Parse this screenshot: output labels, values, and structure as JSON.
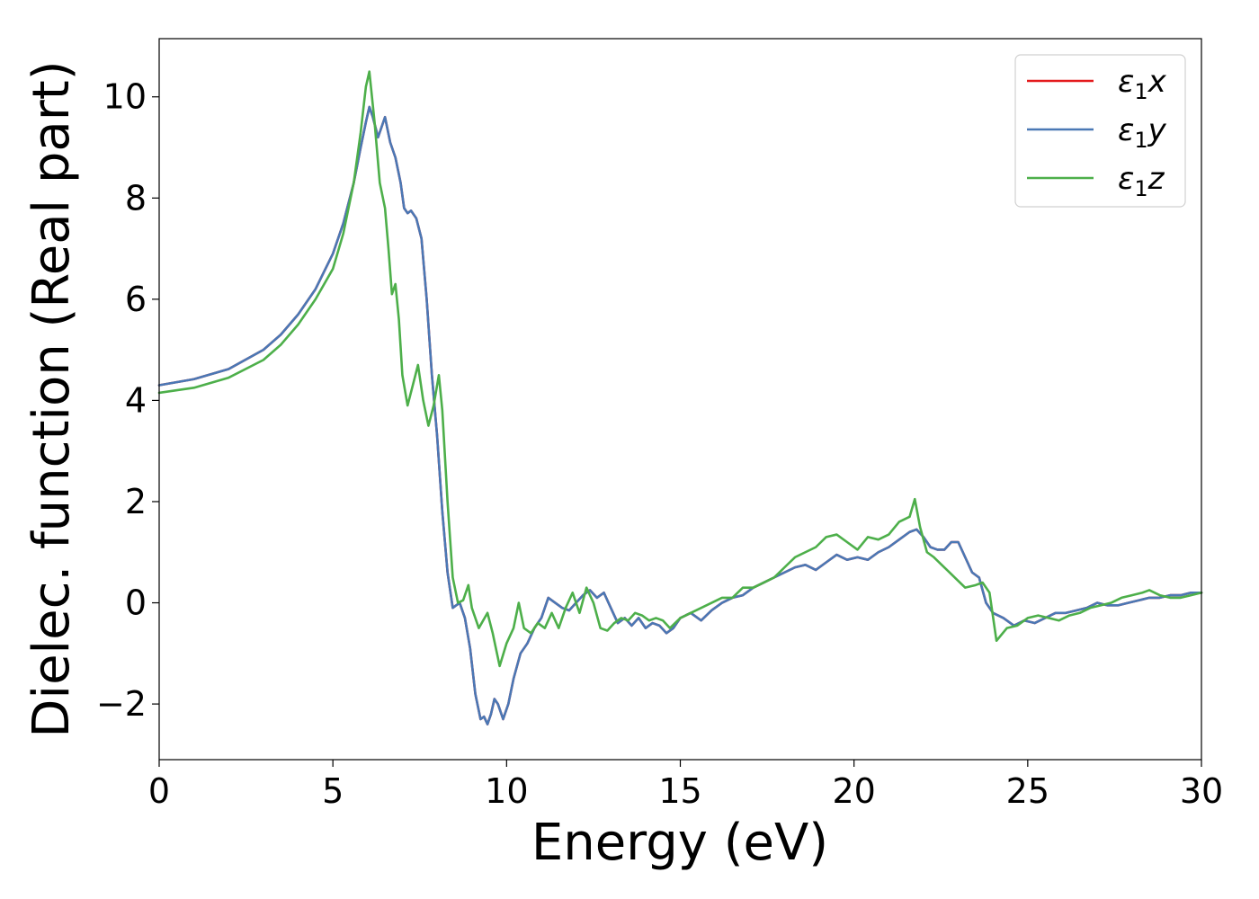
{
  "chart_data": {
    "type": "line",
    "xlabel": "Energy (eV)",
    "ylabel": "Dielec. function (Real part)",
    "xlim": [
      0,
      30
    ],
    "ylim": [
      -3.1,
      11.15
    ],
    "xticks": [
      0,
      5,
      10,
      15,
      20,
      25,
      30
    ],
    "xtick_labels": [
      "0",
      "5",
      "10",
      "15",
      "20",
      "25",
      "30"
    ],
    "yticks": [
      -2,
      0,
      2,
      4,
      6,
      8,
      10
    ],
    "ytick_labels": [
      "−2",
      "0",
      "2",
      "4",
      "6",
      "8",
      "10"
    ],
    "grid": false,
    "legend_position": "top-right",
    "series": [
      {
        "name": "ε1x",
        "legend_base": "ε",
        "legend_sub": "1",
        "legend_var": "x",
        "color": "#e41a1c",
        "x": [
          0,
          1,
          2,
          3,
          3.5,
          4,
          4.5,
          5,
          5.3,
          5.6,
          5.8,
          5.95,
          6.05,
          6.15,
          6.3,
          6.5,
          6.65,
          6.8,
          6.95,
          7.05,
          7.15,
          7.25,
          7.4,
          7.55,
          7.7,
          7.85,
          8.0,
          8.15,
          8.3,
          8.45,
          8.55,
          8.65,
          8.8,
          8.95,
          9.1,
          9.25,
          9.35,
          9.45,
          9.55,
          9.65,
          9.75,
          9.9,
          10.05,
          10.2,
          10.4,
          10.6,
          10.8,
          11.0,
          11.2,
          11.4,
          11.6,
          11.8,
          12.0,
          12.2,
          12.4,
          12.6,
          12.8,
          13.0,
          13.2,
          13.4,
          13.6,
          13.8,
          14.0,
          14.2,
          14.4,
          14.6,
          14.8,
          15.0,
          15.3,
          15.6,
          15.9,
          16.2,
          16.5,
          16.8,
          17.1,
          17.4,
          17.7,
          18.0,
          18.3,
          18.6,
          18.9,
          19.2,
          19.5,
          19.8,
          20.1,
          20.4,
          20.7,
          21.0,
          21.3,
          21.6,
          21.8,
          22.0,
          22.2,
          22.4,
          22.6,
          22.8,
          23.0,
          23.2,
          23.4,
          23.6,
          23.8,
          24.0,
          24.3,
          24.6,
          24.9,
          25.2,
          25.5,
          25.8,
          26.1,
          26.4,
          26.7,
          27.0,
          27.3,
          27.6,
          27.9,
          28.2,
          28.5,
          28.8,
          29.1,
          29.4,
          29.7,
          30.0
        ],
        "y": [
          4.3,
          4.42,
          4.62,
          5.0,
          5.3,
          5.7,
          6.2,
          6.9,
          7.5,
          8.3,
          9.0,
          9.5,
          9.8,
          9.6,
          9.2,
          9.6,
          9.1,
          8.8,
          8.3,
          7.8,
          7.7,
          7.75,
          7.6,
          7.2,
          6.0,
          4.5,
          3.3,
          1.8,
          0.6,
          -0.1,
          -0.05,
          0.0,
          -0.3,
          -0.9,
          -1.8,
          -2.3,
          -2.25,
          -2.4,
          -2.2,
          -1.9,
          -2.0,
          -2.3,
          -2.0,
          -1.5,
          -1.0,
          -0.8,
          -0.5,
          -0.3,
          0.1,
          0.0,
          -0.1,
          -0.15,
          0.0,
          0.15,
          0.25,
          0.1,
          0.2,
          -0.1,
          -0.4,
          -0.3,
          -0.45,
          -0.3,
          -0.5,
          -0.4,
          -0.45,
          -0.6,
          -0.5,
          -0.3,
          -0.2,
          -0.35,
          -0.15,
          0.0,
          0.1,
          0.15,
          0.3,
          0.4,
          0.5,
          0.6,
          0.7,
          0.75,
          0.65,
          0.8,
          0.95,
          0.85,
          0.9,
          0.85,
          1.0,
          1.1,
          1.25,
          1.4,
          1.45,
          1.3,
          1.1,
          1.05,
          1.05,
          1.2,
          1.2,
          0.9,
          0.6,
          0.5,
          0.0,
          -0.2,
          -0.3,
          -0.45,
          -0.35,
          -0.4,
          -0.3,
          -0.2,
          -0.2,
          -0.15,
          -0.1,
          0.0,
          -0.05,
          -0.05,
          0.0,
          0.05,
          0.1,
          0.1,
          0.15,
          0.15,
          0.2,
          0.2
        ]
      },
      {
        "name": "ε1y",
        "legend_base": "ε",
        "legend_sub": "1",
        "legend_var": "y",
        "color": "#4a78b5",
        "x": [
          0,
          1,
          2,
          3,
          3.5,
          4,
          4.5,
          5,
          5.3,
          5.6,
          5.8,
          5.95,
          6.05,
          6.15,
          6.3,
          6.5,
          6.65,
          6.8,
          6.95,
          7.05,
          7.15,
          7.25,
          7.4,
          7.55,
          7.7,
          7.85,
          8.0,
          8.15,
          8.3,
          8.45,
          8.55,
          8.65,
          8.8,
          8.95,
          9.1,
          9.25,
          9.35,
          9.45,
          9.55,
          9.65,
          9.75,
          9.9,
          10.05,
          10.2,
          10.4,
          10.6,
          10.8,
          11.0,
          11.2,
          11.4,
          11.6,
          11.8,
          12.0,
          12.2,
          12.4,
          12.6,
          12.8,
          13.0,
          13.2,
          13.4,
          13.6,
          13.8,
          14.0,
          14.2,
          14.4,
          14.6,
          14.8,
          15.0,
          15.3,
          15.6,
          15.9,
          16.2,
          16.5,
          16.8,
          17.1,
          17.4,
          17.7,
          18.0,
          18.3,
          18.6,
          18.9,
          19.2,
          19.5,
          19.8,
          20.1,
          20.4,
          20.7,
          21.0,
          21.3,
          21.6,
          21.8,
          22.0,
          22.2,
          22.4,
          22.6,
          22.8,
          23.0,
          23.2,
          23.4,
          23.6,
          23.8,
          24.0,
          24.3,
          24.6,
          24.9,
          25.2,
          25.5,
          25.8,
          26.1,
          26.4,
          26.7,
          27.0,
          27.3,
          27.6,
          27.9,
          28.2,
          28.5,
          28.8,
          29.1,
          29.4,
          29.7,
          30.0
        ],
        "y": [
          4.3,
          4.42,
          4.62,
          5.0,
          5.3,
          5.7,
          6.2,
          6.9,
          7.5,
          8.3,
          9.0,
          9.5,
          9.8,
          9.6,
          9.2,
          9.6,
          9.1,
          8.8,
          8.3,
          7.8,
          7.7,
          7.75,
          7.6,
          7.2,
          6.0,
          4.5,
          3.3,
          1.8,
          0.6,
          -0.1,
          -0.05,
          0.0,
          -0.3,
          -0.9,
          -1.8,
          -2.3,
          -2.25,
          -2.4,
          -2.2,
          -1.9,
          -2.0,
          -2.3,
          -2.0,
          -1.5,
          -1.0,
          -0.8,
          -0.5,
          -0.3,
          0.1,
          0.0,
          -0.1,
          -0.15,
          0.0,
          0.15,
          0.25,
          0.1,
          0.2,
          -0.1,
          -0.4,
          -0.3,
          -0.45,
          -0.3,
          -0.5,
          -0.4,
          -0.45,
          -0.6,
          -0.5,
          -0.3,
          -0.2,
          -0.35,
          -0.15,
          0.0,
          0.1,
          0.15,
          0.3,
          0.4,
          0.5,
          0.6,
          0.7,
          0.75,
          0.65,
          0.8,
          0.95,
          0.85,
          0.9,
          0.85,
          1.0,
          1.1,
          1.25,
          1.4,
          1.45,
          1.3,
          1.1,
          1.05,
          1.05,
          1.2,
          1.2,
          0.9,
          0.6,
          0.5,
          0.0,
          -0.2,
          -0.3,
          -0.45,
          -0.35,
          -0.4,
          -0.3,
          -0.2,
          -0.2,
          -0.15,
          -0.1,
          0.0,
          -0.05,
          -0.05,
          0.0,
          0.05,
          0.1,
          0.1,
          0.15,
          0.15,
          0.2,
          0.2
        ]
      },
      {
        "name": "ε1z",
        "legend_base": "ε",
        "legend_sub": "1",
        "legend_var": "z",
        "color": "#4daf4a",
        "x": [
          0,
          1,
          2,
          3,
          3.5,
          4,
          4.5,
          5,
          5.3,
          5.6,
          5.8,
          5.95,
          6.05,
          6.2,
          6.35,
          6.5,
          6.6,
          6.7,
          6.8,
          6.9,
          7.0,
          7.15,
          7.3,
          7.45,
          7.6,
          7.75,
          7.9,
          8.05,
          8.15,
          8.3,
          8.45,
          8.6,
          8.75,
          8.9,
          9.0,
          9.2,
          9.45,
          9.6,
          9.8,
          10.0,
          10.2,
          10.35,
          10.5,
          10.7,
          10.9,
          11.1,
          11.3,
          11.5,
          11.7,
          11.9,
          12.1,
          12.3,
          12.5,
          12.7,
          12.9,
          13.1,
          13.3,
          13.5,
          13.7,
          13.9,
          14.1,
          14.3,
          14.5,
          14.7,
          15.0,
          15.3,
          15.6,
          15.9,
          16.2,
          16.5,
          16.8,
          17.1,
          17.4,
          17.7,
          18.0,
          18.3,
          18.6,
          18.9,
          19.2,
          19.5,
          19.8,
          20.1,
          20.4,
          20.7,
          21.0,
          21.3,
          21.6,
          21.75,
          21.9,
          22.1,
          22.3,
          22.6,
          22.9,
          23.2,
          23.5,
          23.7,
          23.9,
          24.1,
          24.4,
          24.7,
          25.0,
          25.3,
          25.6,
          25.9,
          26.2,
          26.5,
          26.8,
          27.1,
          27.4,
          27.7,
          28.0,
          28.3,
          28.5,
          28.8,
          29.1,
          29.4,
          29.7,
          30.0
        ],
        "y": [
          4.15,
          4.25,
          4.45,
          4.8,
          5.1,
          5.5,
          6.0,
          6.6,
          7.3,
          8.3,
          9.3,
          10.2,
          10.5,
          9.5,
          8.3,
          7.8,
          7.0,
          6.1,
          6.3,
          5.6,
          4.5,
          3.9,
          4.3,
          4.7,
          4.0,
          3.5,
          3.9,
          4.5,
          3.8,
          2.0,
          0.5,
          0.0,
          0.05,
          0.35,
          -0.1,
          -0.5,
          -0.2,
          -0.6,
          -1.25,
          -0.8,
          -0.5,
          0.0,
          -0.5,
          -0.6,
          -0.4,
          -0.5,
          -0.2,
          -0.5,
          -0.1,
          0.2,
          -0.2,
          0.3,
          0.0,
          -0.5,
          -0.55,
          -0.4,
          -0.3,
          -0.35,
          -0.2,
          -0.25,
          -0.35,
          -0.3,
          -0.35,
          -0.5,
          -0.3,
          -0.2,
          -0.1,
          0.0,
          0.1,
          0.1,
          0.3,
          0.3,
          0.4,
          0.5,
          0.7,
          0.9,
          1.0,
          1.1,
          1.3,
          1.35,
          1.2,
          1.05,
          1.3,
          1.25,
          1.35,
          1.6,
          1.7,
          2.05,
          1.5,
          1.0,
          0.9,
          0.7,
          0.5,
          0.3,
          0.35,
          0.4,
          0.2,
          -0.75,
          -0.5,
          -0.45,
          -0.3,
          -0.25,
          -0.3,
          -0.35,
          -0.25,
          -0.2,
          -0.1,
          -0.05,
          0.0,
          0.1,
          0.15,
          0.2,
          0.25,
          0.15,
          0.1,
          0.1,
          0.15,
          0.2
        ]
      }
    ]
  }
}
